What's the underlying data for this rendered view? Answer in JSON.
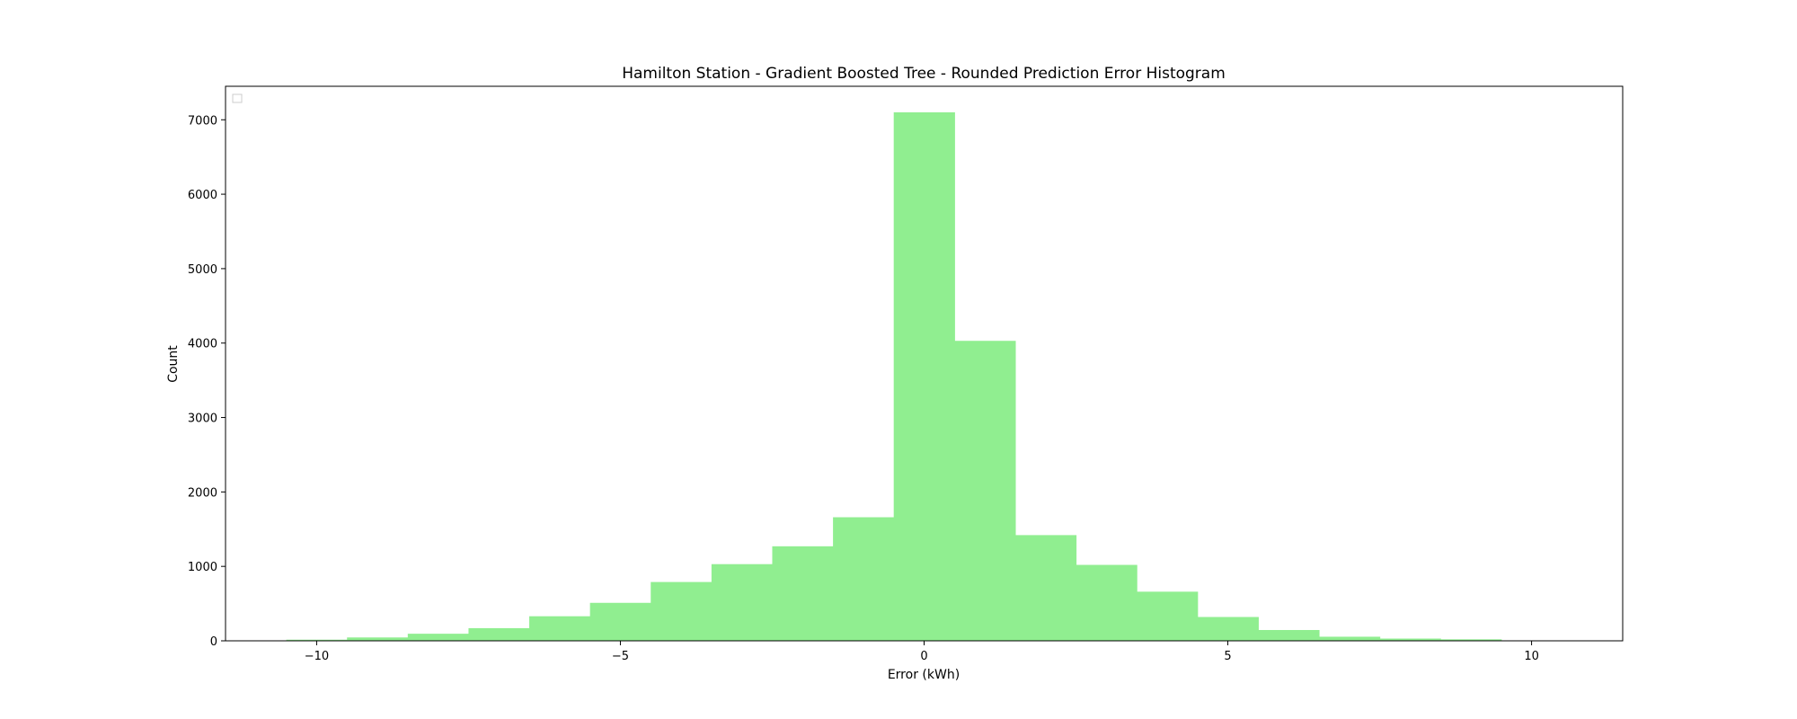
{
  "chart_data": {
    "type": "bar",
    "title": "Hamilton Station - Gradient Boosted Tree - Rounded Prediction Error Histogram",
    "xlabel": "Error (kWh)",
    "ylabel": "Count",
    "xlim": [
      -11.5,
      11.5
    ],
    "ylim": [
      0,
      7450
    ],
    "x_ticks": [
      -10,
      -5,
      0,
      5,
      10
    ],
    "x_tick_labels": [
      "−10",
      "−5",
      "0",
      "5",
      "10"
    ],
    "y_ticks": [
      0,
      1000,
      2000,
      3000,
      4000,
      5000,
      6000,
      7000
    ],
    "y_tick_labels": [
      "0",
      "1000",
      "2000",
      "3000",
      "4000",
      "5000",
      "6000",
      "7000"
    ],
    "bin_width": 1,
    "bar_color": "#90ee90",
    "grid": false,
    "legend": {
      "location": "upper left",
      "entries": []
    },
    "x": [
      -10,
      -9,
      -8,
      -7,
      -6,
      -5,
      -4,
      -3,
      -2,
      -1,
      0,
      1,
      2,
      3,
      4,
      5,
      6,
      7,
      8,
      9
    ],
    "values": [
      15,
      45,
      95,
      170,
      330,
      510,
      790,
      1030,
      1270,
      1660,
      7100,
      4030,
      1420,
      1020,
      660,
      320,
      145,
      55,
      30,
      20
    ]
  }
}
